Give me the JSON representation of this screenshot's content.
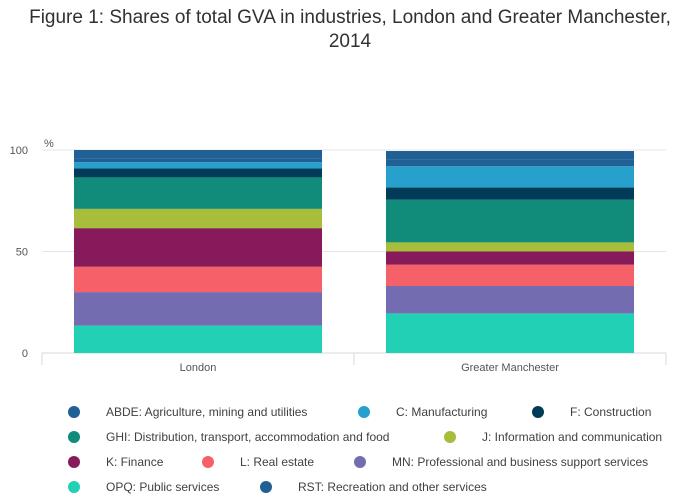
{
  "chart_data": {
    "type": "bar",
    "stacked": true,
    "title": "Figure 1: Shares of total GVA in industries, London and Greater Manchester, 2014",
    "ylabel": "%",
    "xlabel": "",
    "ylim": [
      0,
      100
    ],
    "yticks": [
      0,
      50,
      100
    ],
    "grid": true,
    "legend_position": "bottom",
    "categories": [
      "London",
      "Greater Manchester"
    ],
    "series": [
      {
        "name": "OPQ: Public services",
        "color": "#22D0B6",
        "values": [
          13.5,
          19.5
        ]
      },
      {
        "name": "MN: Professional and business support services",
        "color": "#746CB1",
        "values": [
          16.5,
          13.5
        ]
      },
      {
        "name": "L: Real estate",
        "color": "#F66068",
        "values": [
          12.5,
          10.5
        ]
      },
      {
        "name": "K: Finance",
        "color": "#871A5B",
        "values": [
          19.0,
          6.5
        ]
      },
      {
        "name": "J: Information and communication",
        "color": "#A8BD3A",
        "values": [
          9.5,
          4.5
        ]
      },
      {
        "name": "GHI: Distribution, transport, accommodation and food",
        "color": "#118C7B",
        "values": [
          15.5,
          21.0
        ]
      },
      {
        "name": "F: Construction",
        "color": "#003C57",
        "values": [
          4.5,
          6.0
        ]
      },
      {
        "name": "C: Manufacturing",
        "color": "#27A0CC",
        "values": [
          3.0,
          10.5
        ]
      },
      {
        "name": "ABDE: Agriculture, mining and utilities",
        "color": "#206095",
        "values": [
          2.0,
          3.5
        ]
      },
      {
        "name": "RST: Recreation and other services",
        "color": "#206095",
        "values": [
          4.0,
          4.0
        ]
      }
    ],
    "legend": [
      {
        "name": "ABDE: Agriculture, mining and utilities",
        "color": "#206095"
      },
      {
        "name": "C: Manufacturing",
        "color": "#27A0CC"
      },
      {
        "name": "F: Construction",
        "color": "#003C57"
      },
      {
        "name": "GHI: Distribution, transport, accommodation and food",
        "color": "#118C7B"
      },
      {
        "name": "J: Information and communication",
        "color": "#A8BD3A"
      },
      {
        "name": "K: Finance",
        "color": "#871A5B"
      },
      {
        "name": "L: Real estate",
        "color": "#F66068"
      },
      {
        "name": "MN: Professional and business support services",
        "color": "#746CB1"
      },
      {
        "name": "OPQ: Public services",
        "color": "#22D0B6"
      },
      {
        "name": "RST: Recreation and other services",
        "color": "#206095"
      }
    ]
  }
}
